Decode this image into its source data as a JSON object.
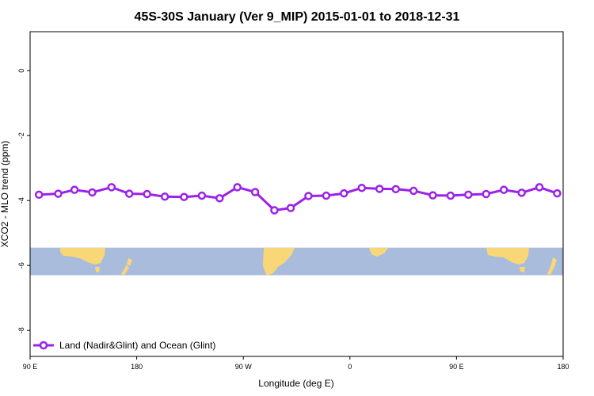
{
  "chart_data": {
    "type": "line",
    "title": "45S-30S January (Ver 9_MIP)   2015-01-01 to 2018-12-31",
    "xlabel": "Longitude (deg E)",
    "ylabel": "XCO2 - MLO trend (ppm)",
    "xlim": [
      90,
      450
    ],
    "ylim": [
      -8.8,
      1.2
    ],
    "x_ticks": [
      {
        "value": 90,
        "label": "90 E"
      },
      {
        "value": 162,
        "label": "180"
      },
      {
        "value": 234,
        "label": "90 W"
      },
      {
        "value": 306,
        "label": "0"
      },
      {
        "value": 378,
        "label": "90 E"
      },
      {
        "value": 450,
        "label": "180"
      }
    ],
    "y_ticks": [
      {
        "value": 0,
        "label": "0"
      },
      {
        "value": -2,
        "label": "-2"
      },
      {
        "value": -4,
        "label": "-4"
      },
      {
        "value": -6,
        "label": "-6"
      },
      {
        "value": -8,
        "label": "-8"
      }
    ],
    "grid": false,
    "legend_position": "bottom-left",
    "map_band": {
      "ymin": -6.3,
      "ymax": -5.45,
      "ocean_color": "#a9bcdc",
      "land_color": "#f9d776"
    },
    "series": [
      {
        "name": "Land (Nadir&Glint) and Ocean (Glint)",
        "color": "#9b22e8",
        "x": [
          96,
          109,
          120,
          132,
          145,
          157,
          169,
          181,
          194,
          206,
          218,
          230,
          242,
          255,
          266,
          278,
          290,
          302,
          314,
          326,
          337,
          349,
          362,
          374,
          386,
          398,
          410,
          422,
          434,
          446
        ],
        "y": [
          -3.82,
          -3.79,
          -3.67,
          -3.75,
          -3.59,
          -3.79,
          -3.8,
          -3.88,
          -3.89,
          -3.85,
          -3.93,
          -3.59,
          -3.74,
          -4.3,
          -4.23,
          -3.86,
          -3.85,
          -3.78,
          -3.61,
          -3.64,
          -3.65,
          -3.7,
          -3.84,
          -3.85,
          -3.82,
          -3.8,
          -3.67,
          -3.76,
          -3.59,
          -3.78
        ]
      }
    ]
  }
}
